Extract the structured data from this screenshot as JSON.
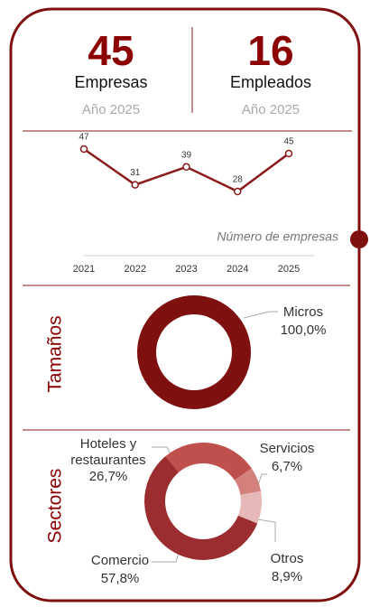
{
  "kpis": [
    {
      "value": 45,
      "label": "Empresas",
      "sub": "Año 2025"
    },
    {
      "value": 16,
      "label": "Empleados",
      "sub": "Año 2025"
    }
  ],
  "chart_data": [
    {
      "type": "line",
      "title": "Número de empresas",
      "categories": [
        "2021",
        "2022",
        "2023",
        "2024",
        "2025"
      ],
      "values": [
        47,
        31,
        39,
        28,
        45
      ],
      "color": "#8b1a1a"
    },
    {
      "type": "donut",
      "title": "Tamaños",
      "categories": [
        "Micros"
      ],
      "values": [
        100
      ],
      "value_labels": [
        "100,0%"
      ],
      "colors": [
        "#7f1010"
      ]
    },
    {
      "type": "donut",
      "title": "Sectores",
      "categories": [
        "Hoteles y restaurantes",
        "Servicios",
        "Otros",
        "Comercio"
      ],
      "values": [
        26.7,
        6.7,
        8.9,
        57.8
      ],
      "value_labels": [
        "26,7%",
        "6,7%",
        "8,9%",
        "57,8%"
      ],
      "colors": [
        "#c0504d",
        "#d4807d",
        "#e6b8b7",
        "#9b2d30"
      ]
    }
  ]
}
